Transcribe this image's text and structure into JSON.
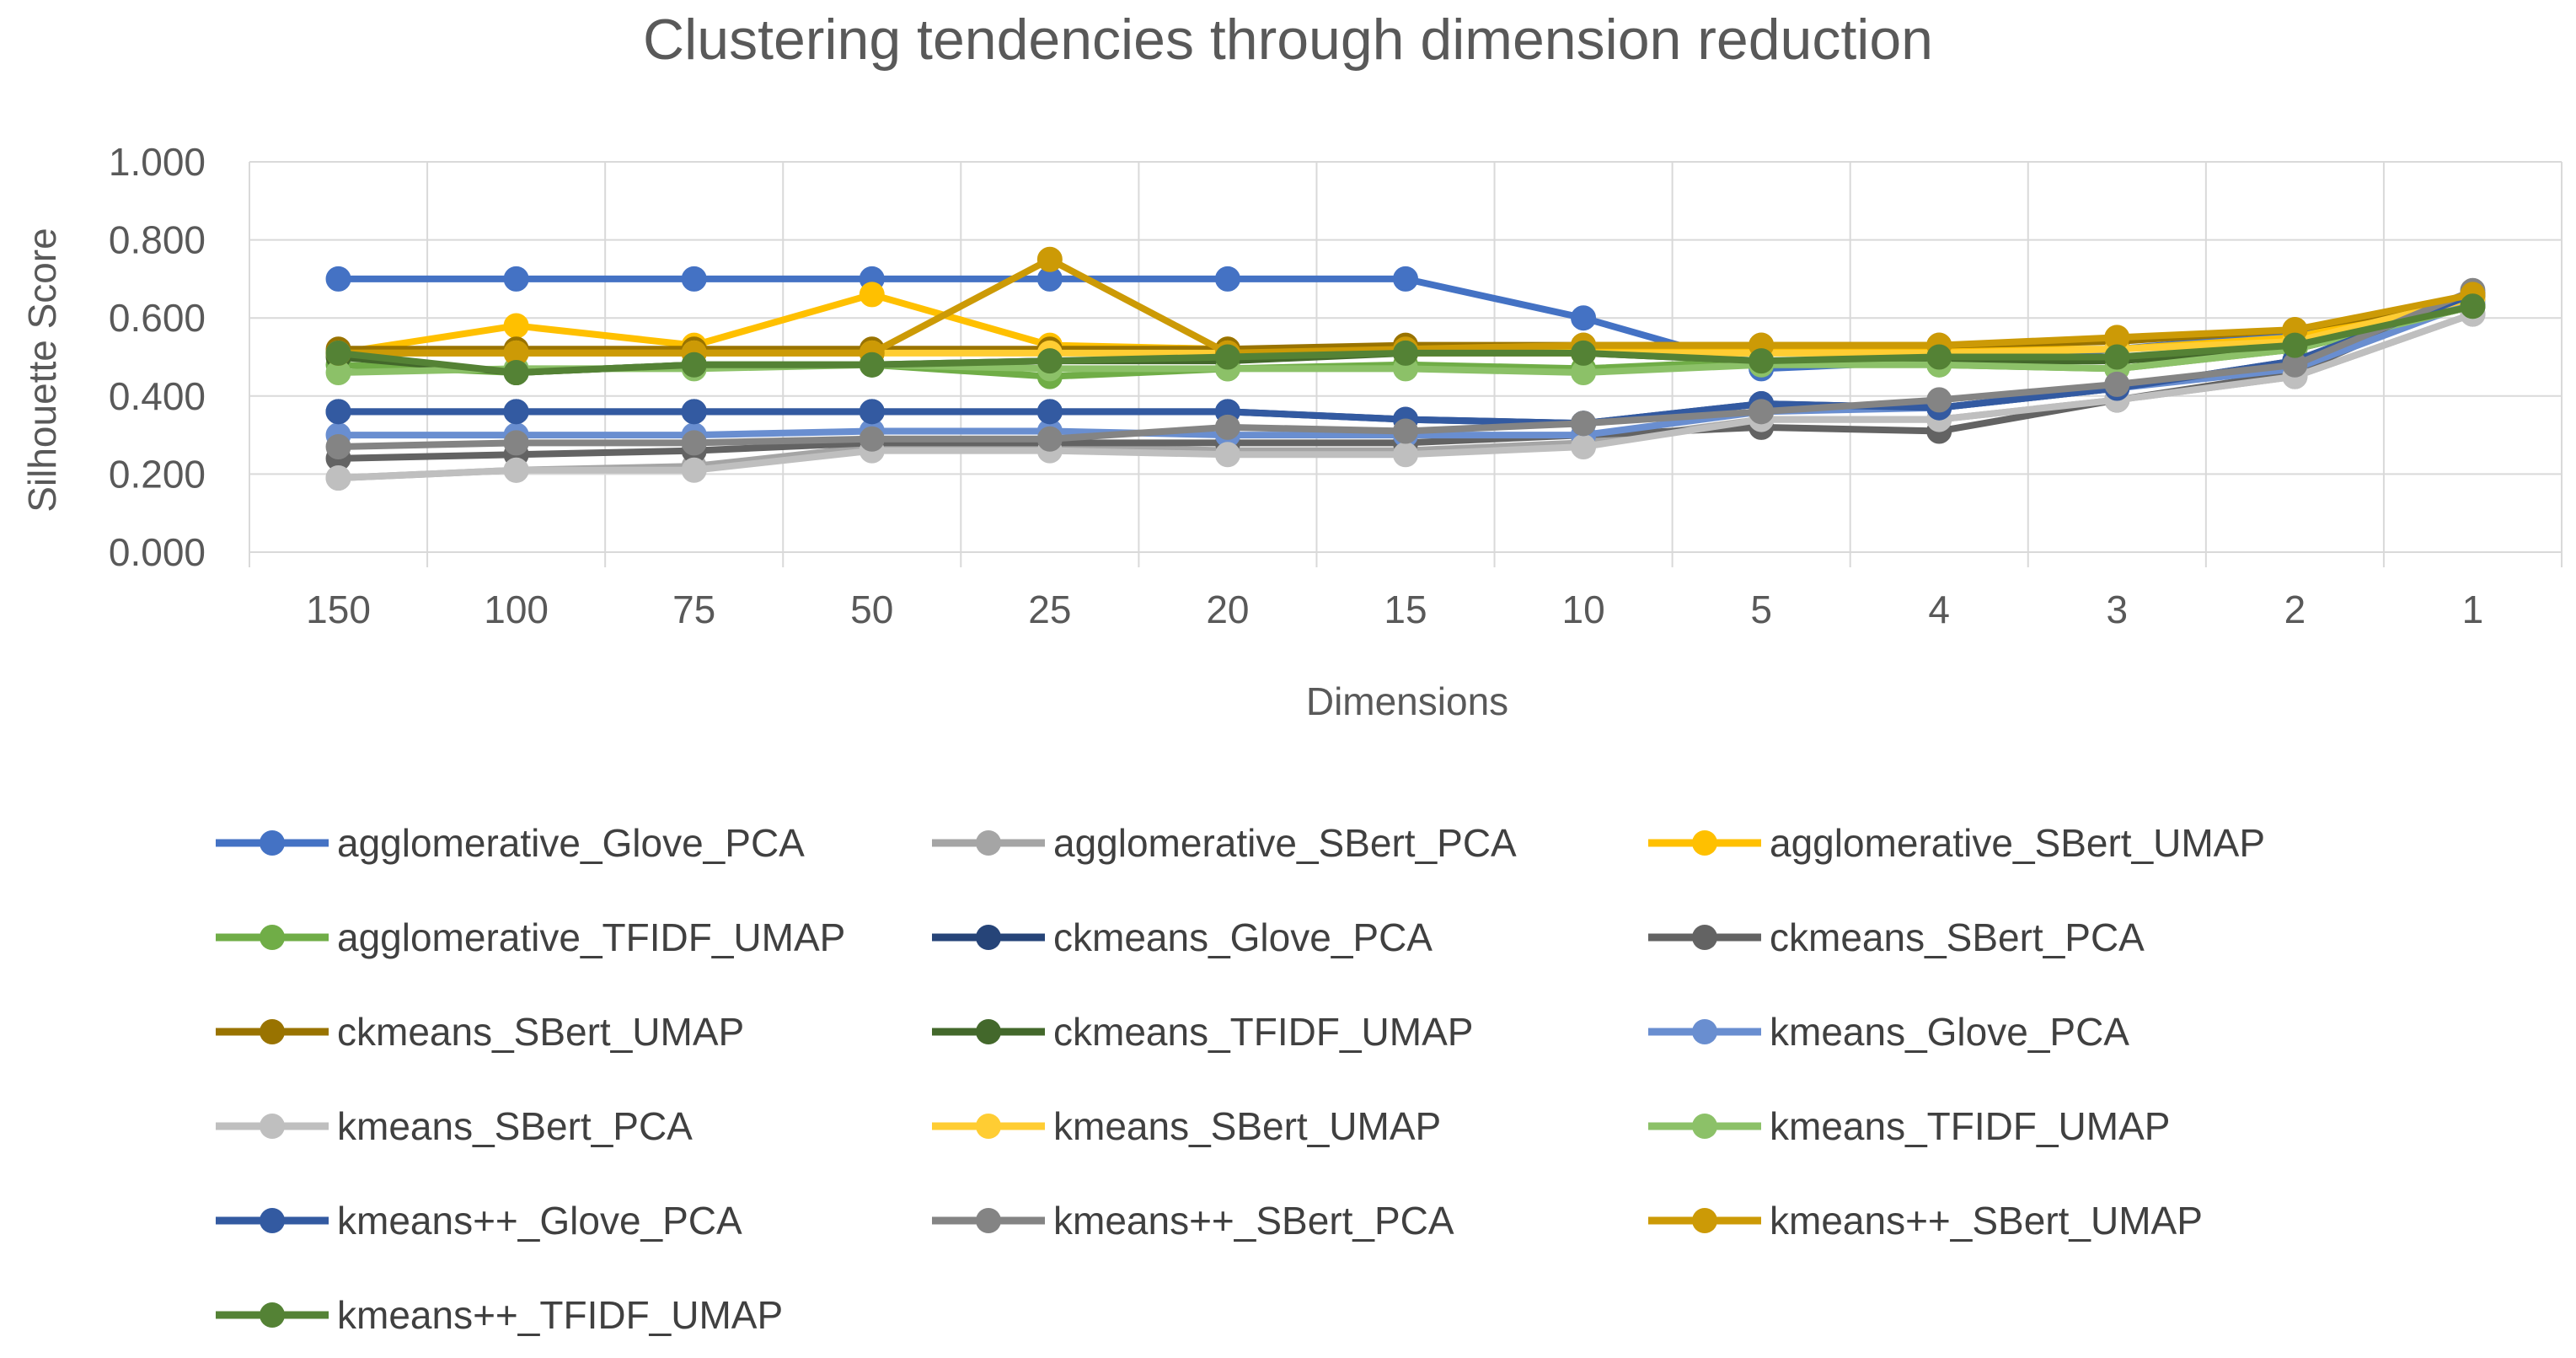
{
  "chart_data": {
    "type": "line",
    "title": "Clustering tendencies through dimension reduction",
    "xlabel": "Dimensions",
    "ylabel": "Silhouette Score",
    "ylim": [
      0,
      1
    ],
    "yticks": [
      "0.000",
      "0.200",
      "0.400",
      "0.600",
      "0.800",
      "1.000"
    ],
    "categories": [
      "150",
      "100",
      "75",
      "50",
      "25",
      "20",
      "15",
      "10",
      "5",
      "4",
      "3",
      "2",
      "1"
    ],
    "grid": true,
    "legend_position": "bottom",
    "series": [
      {
        "name": "agglomerative_Glove_PCA",
        "color": "#4472C4",
        "values": [
          0.7,
          0.7,
          0.7,
          0.7,
          0.7,
          0.7,
          0.7,
          0.6,
          0.47,
          0.49,
          0.52,
          0.56,
          0.65
        ]
      },
      {
        "name": "agglomerative_SBert_PCA",
        "color": "#A5A5A5",
        "values": [
          0.19,
          0.21,
          0.22,
          0.27,
          0.27,
          0.26,
          0.26,
          0.28,
          0.34,
          0.34,
          0.39,
          0.45,
          0.61
        ]
      },
      {
        "name": "agglomerative_SBert_UMAP",
        "color": "#FFC000",
        "values": [
          0.51,
          0.58,
          0.53,
          0.66,
          0.53,
          0.52,
          0.52,
          0.52,
          0.52,
          0.52,
          0.52,
          0.55,
          0.65
        ]
      },
      {
        "name": "agglomerative_TFIDF_UMAP",
        "color": "#70AD47",
        "values": [
          0.48,
          0.46,
          0.48,
          0.48,
          0.45,
          0.47,
          0.48,
          0.47,
          0.49,
          0.48,
          0.47,
          0.52,
          0.63
        ]
      },
      {
        "name": "ckmeans_Glove_PCA",
        "color": "#264478",
        "values": [
          0.36,
          0.36,
          0.36,
          0.36,
          0.36,
          0.36,
          0.34,
          0.33,
          0.38,
          0.37,
          0.42,
          0.49,
          0.66
        ]
      },
      {
        "name": "ckmeans_SBert_PCA",
        "color": "#636363",
        "values": [
          0.24,
          0.25,
          0.26,
          0.28,
          0.28,
          0.28,
          0.28,
          0.3,
          0.32,
          0.31,
          0.39,
          0.46,
          0.66
        ]
      },
      {
        "name": "ckmeans_SBert_UMAP",
        "color": "#997300",
        "values": [
          0.52,
          0.52,
          0.52,
          0.52,
          0.52,
          0.52,
          0.53,
          0.53,
          0.53,
          0.53,
          0.54,
          0.57,
          0.65
        ]
      },
      {
        "name": "ckmeans_TFIDF_UMAP",
        "color": "#43682B",
        "values": [
          0.5,
          0.46,
          0.48,
          0.48,
          0.49,
          0.49,
          0.51,
          0.51,
          0.49,
          0.49,
          0.49,
          0.52,
          0.63
        ]
      },
      {
        "name": "kmeans_Glove_PCA",
        "color": "#698ED0",
        "values": [
          0.3,
          0.3,
          0.3,
          0.31,
          0.31,
          0.3,
          0.3,
          0.3,
          0.36,
          0.37,
          0.42,
          0.47,
          0.64
        ]
      },
      {
        "name": "kmeans_SBert_PCA",
        "color": "#BFBFBF",
        "values": [
          0.19,
          0.21,
          0.21,
          0.26,
          0.26,
          0.25,
          0.25,
          0.27,
          0.34,
          0.34,
          0.39,
          0.45,
          0.61
        ]
      },
      {
        "name": "kmeans_SBert_UMAP",
        "color": "#FFCD33",
        "values": [
          0.51,
          0.51,
          0.51,
          0.51,
          0.51,
          0.51,
          0.51,
          0.51,
          0.51,
          0.51,
          0.52,
          0.54,
          0.65
        ]
      },
      {
        "name": "kmeans_TFIDF_UMAP",
        "color": "#8CC168",
        "values": [
          0.46,
          0.47,
          0.47,
          0.48,
          0.47,
          0.47,
          0.47,
          0.46,
          0.48,
          0.48,
          0.47,
          0.52,
          0.63
        ]
      },
      {
        "name": "kmeans++_Glove_PCA",
        "color": "#335AA1",
        "values": [
          0.36,
          0.36,
          0.36,
          0.36,
          0.36,
          0.36,
          0.34,
          0.33,
          0.38,
          0.37,
          0.42,
          0.49,
          0.66
        ]
      },
      {
        "name": "kmeans++_SBert_PCA",
        "color": "#848484",
        "values": [
          0.27,
          0.28,
          0.28,
          0.29,
          0.29,
          0.32,
          0.31,
          0.33,
          0.36,
          0.39,
          0.43,
          0.48,
          0.67
        ]
      },
      {
        "name": "kmeans++_SBert_UMAP",
        "color": "#CC9A06",
        "values": [
          0.51,
          0.51,
          0.51,
          0.51,
          0.75,
          0.51,
          0.52,
          0.53,
          0.53,
          0.53,
          0.55,
          0.57,
          0.66
        ]
      },
      {
        "name": "kmeans++_TFIDF_UMAP",
        "color": "#548235",
        "values": [
          0.51,
          0.46,
          0.48,
          0.48,
          0.49,
          0.5,
          0.51,
          0.51,
          0.49,
          0.5,
          0.5,
          0.53,
          0.63
        ]
      }
    ]
  }
}
